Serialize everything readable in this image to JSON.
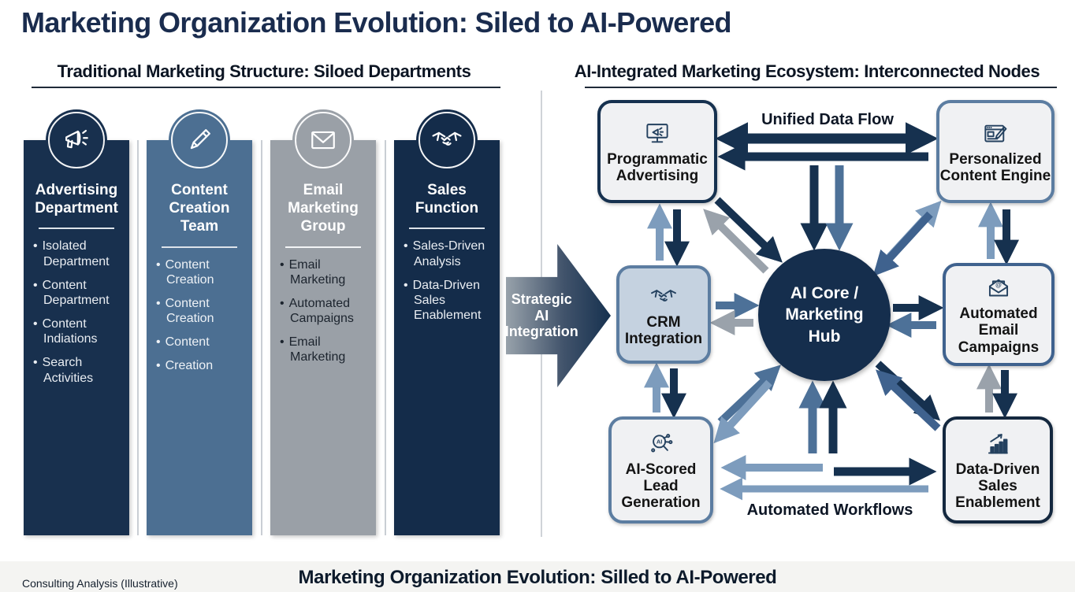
{
  "page": {
    "title": "Marketing Organization Evolution: Siled to AI-Powered",
    "footer_note": "Consulting Analysis (Illustrative)",
    "footer_title": "Marketing Organization Evolution: Silled to AI-Powered"
  },
  "colors": {
    "dark": "#16314f",
    "steel": "#3f628e",
    "mid": "#4d7198",
    "light": "#7d9cbd",
    "gray": "#9aa2ab",
    "node_bg": "#f0f1f3",
    "crm_bg": "#c5d2e0",
    "hub_bg": "#152e4d"
  },
  "left_panel": {
    "header": "Traditional Marketing Structure: Siloed Departments",
    "columns": [
      {
        "id": "advertising-department",
        "icon": "megaphone-icon",
        "title": "Advertising Department",
        "bullets": [
          "Isolated Department",
          "Content Department",
          "Content Indiations",
          "Search Activities"
        ],
        "bar_color": "#18304e",
        "title_color": "#ffffff",
        "bullet_color": "#e9edf2",
        "divider_color": "#dde3ea"
      },
      {
        "id": "content-creation-team",
        "icon": "pen-icon",
        "title": "Content Creation Team",
        "bullets": [
          "Content Creation",
          "Content Creation",
          "Content",
          "Creation"
        ],
        "bar_color": "#4c6f92",
        "title_color": "#ffffff",
        "bullet_color": "#eef2f6",
        "divider_color": "#dde3ea"
      },
      {
        "id": "email-marketing-group",
        "icon": "envelope-icon",
        "title": "Email Marketing Group",
        "bullets": [
          "Email Marketing",
          "Automated Campaigns",
          "Email Marketing"
        ],
        "bar_color": "#9aa0a7",
        "title_color": "#ffffff",
        "bullet_color": "#1c242e",
        "divider_color": "#f2f4f6"
      },
      {
        "id": "sales-function",
        "icon": "handshake-icon",
        "title": "Sales Function",
        "bullets": [
          "Sales-Driven Analysis",
          "Data-Driven Sales Enablement"
        ],
        "bar_color": "#142c4a",
        "title_color": "#ffffff",
        "bullet_color": "#e9edf2",
        "divider_color": "#dde3ea"
      }
    ]
  },
  "transition_arrow": {
    "label": "Strategic AI Integration"
  },
  "right_panel": {
    "header": "AI-Integrated Marketing Ecosystem: Interconnected Nodes",
    "top_flow_label": "Unified Data Flow",
    "bottom_flow_label": "Automated Workflows",
    "hub": {
      "label": "AI Core / Marketing Hub"
    },
    "nodes": [
      {
        "id": "programmatic-advertising",
        "icon": "monitor-megaphone-icon",
        "label": "Programmatic Advertising"
      },
      {
        "id": "personalized-content-engine",
        "icon": "browser-pencil-icon",
        "label": "Personalized Content Engine"
      },
      {
        "id": "crm-integration",
        "icon": "handshake-icon",
        "label": "CRM Integration"
      },
      {
        "id": "automated-email-campaigns",
        "icon": "envelope-at-icon",
        "label": "Automated Email Campaigns"
      },
      {
        "id": "ai-scored-lead-generation",
        "icon": "magnifier-ai-icon",
        "label": "AI-Scored Lead Generation"
      },
      {
        "id": "data-driven-sales-enablement",
        "icon": "bar-chart-arrow-icon",
        "label": "Data-Driven Sales Enablement"
      }
    ]
  }
}
